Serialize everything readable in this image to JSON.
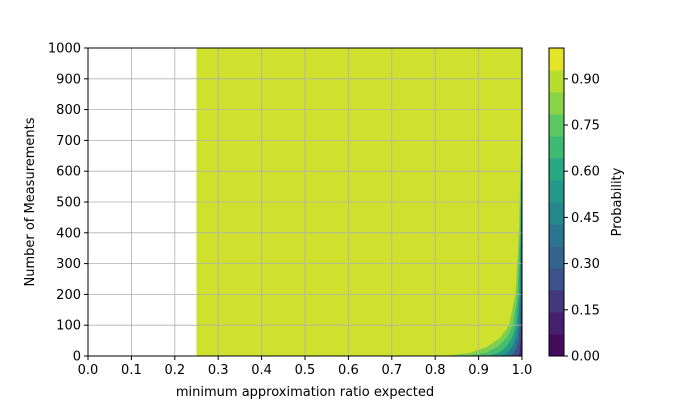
{
  "chart_data": {
    "type": "heatmap",
    "title": "",
    "xlabel": "minimum approximation ratio expected",
    "ylabel": "Number of Measurements",
    "xlim": [
      0.0,
      1.0
    ],
    "ylim": [
      0,
      1000
    ],
    "xticks": [
      "0.0",
      "0.1",
      "0.2",
      "0.3",
      "0.4",
      "0.5",
      "0.6",
      "0.7",
      "0.8",
      "0.9",
      "1.0"
    ],
    "yticks": [
      "0",
      "100",
      "200",
      "300",
      "400",
      "500",
      "600",
      "700",
      "800",
      "900",
      "1000"
    ],
    "grid": true,
    "colormap": "viridis",
    "filled_region": {
      "x_start": 0.25,
      "x_end": 1.0
    },
    "dominant_value": 0.99,
    "transition_edge": [
      {
        "n": 0,
        "x": 0.82
      },
      {
        "n": 10,
        "x": 0.88
      },
      {
        "n": 30,
        "x": 0.92
      },
      {
        "n": 60,
        "x": 0.95
      },
      {
        "n": 100,
        "x": 0.97
      },
      {
        "n": 200,
        "x": 0.985
      },
      {
        "n": 400,
        "x": 0.993
      },
      {
        "n": 700,
        "x": 0.998
      },
      {
        "n": 1000,
        "x": 1.0
      }
    ],
    "colorbar": {
      "label": "Probability",
      "range": [
        0.0,
        1.0
      ],
      "ticks": [
        "0.00",
        "0.15",
        "0.30",
        "0.45",
        "0.60",
        "0.75",
        "0.90"
      ],
      "tick_values": [
        0.0,
        0.15,
        0.3,
        0.45,
        0.6,
        0.75,
        0.9
      ],
      "levels": 14
    }
  }
}
